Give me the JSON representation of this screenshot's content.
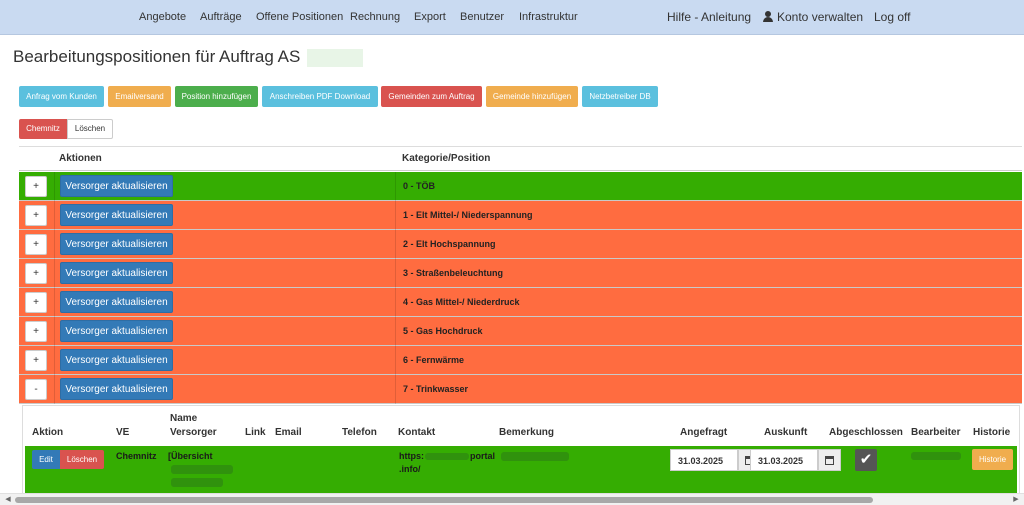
{
  "nav": {
    "items": [
      "Angebote",
      "Aufträge",
      "Offene Positionen",
      "Rechnung",
      "Export",
      "Benutzer",
      "Infrastruktur"
    ],
    "help": "Hilfe - Anleitung",
    "account": "Konto verwalten",
    "logoff": "Log off"
  },
  "page": {
    "title": "Bearbeitungspositionen für Auftrag AS"
  },
  "toolbar": {
    "buttons": [
      {
        "label": "Anfrag vom Kunden",
        "color": "#5bc0de"
      },
      {
        "label": "Emailversand",
        "color": "#f0ad4e"
      },
      {
        "label": "Position hinzufügen",
        "color": "#4cae4c"
      },
      {
        "label": "Anschreiben PDF Download",
        "color": "#5bc0de"
      },
      {
        "label": "Gemeinden zum Auftrag",
        "color": "#d9534f"
      },
      {
        "label": "Gemeinde hinzufügen",
        "color": "#f0ad4e"
      },
      {
        "label": "Netzbetreiber DB",
        "color": "#5bc0de"
      }
    ]
  },
  "filter": {
    "tag": "Chemnitz",
    "delete": "Löschen"
  },
  "table": {
    "headers": {
      "actions": "Aktionen",
      "category": "Kategorie/Position"
    },
    "update_label": "Versorger aktualisieren",
    "rows": [
      {
        "toggle": "+",
        "label": "0 - TÖB",
        "color": "#35ad02"
      },
      {
        "toggle": "+",
        "label": "1 - Elt Mittel-/ Niederspannung",
        "color": "#ff6c40"
      },
      {
        "toggle": "+",
        "label": "2 - Elt Hochspannung",
        "color": "#ff6c40"
      },
      {
        "toggle": "+",
        "label": "3 - Straßenbeleuchtung",
        "color": "#ff6c40"
      },
      {
        "toggle": "+",
        "label": "4 - Gas Mittel-/ Niederdruck",
        "color": "#ff6c40"
      },
      {
        "toggle": "+",
        "label": "5 - Gas Hochdruck",
        "color": "#ff6c40"
      },
      {
        "toggle": "+",
        "label": "6 - Fernwärme",
        "color": "#ff6c40"
      },
      {
        "toggle": "-",
        "label": "7 - Trinkwasser",
        "color": "#ff6c40"
      }
    ]
  },
  "subtable": {
    "headers": {
      "action": "Aktion",
      "ve": "VE",
      "name_line1": "Name",
      "name_line2": "Versorger",
      "link": "Link",
      "email": "Email",
      "phone": "Telefon",
      "contact": "Kontakt",
      "remark": "Bemerkung",
      "requested": "Angefragt",
      "info": "Auskunft",
      "closed": "Abgeschlossen",
      "editor": "Bearbeiter",
      "history": "Historie"
    },
    "row": {
      "edit": "Edit",
      "delete": "Löschen",
      "ve": "Chemnitz",
      "name": "[Übersicht",
      "contact_a": "https:",
      "contact_b": "portal",
      "contact_c": ".info/",
      "requested": "31.03.2025",
      "info": "31.03.2025",
      "closed_mark": "✔",
      "history": "Historie",
      "color": "#35ad02"
    }
  },
  "icons": {
    "account": "user-icon",
    "calendar": "calendar-icon",
    "check": "check-icon"
  }
}
